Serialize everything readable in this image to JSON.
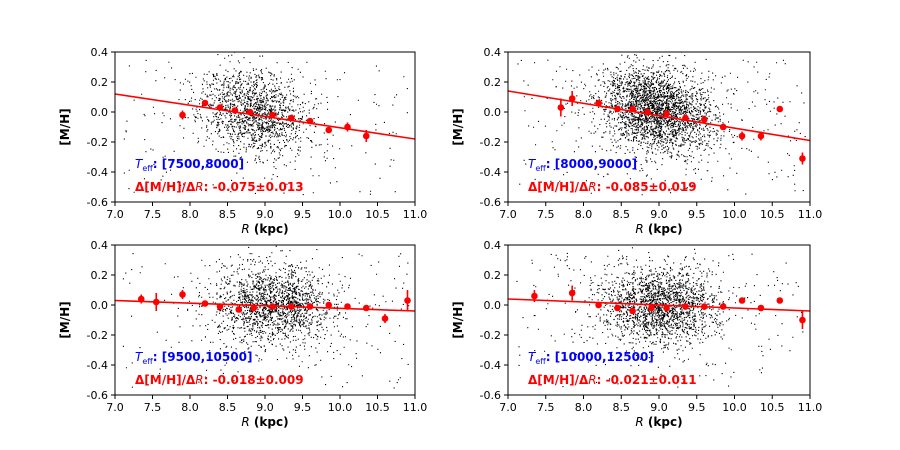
{
  "chart_data": [
    {
      "type": "scatter",
      "panel": "top-left",
      "xlabel_symbol": "R",
      "xlabel_unit": " (kpc)",
      "ylabel": "[M/H]",
      "xlim": [
        7.0,
        11.0
      ],
      "ylim": [
        -0.6,
        0.4
      ],
      "xticks": [
        "7.0",
        "7.5",
        "8.0",
        "8.5",
        "9.0",
        "9.5",
        "10.0",
        "10.5",
        "11.0"
      ],
      "yticks": [
        "-0.6",
        "-0.4",
        "-0.2",
        "0.0",
        "0.2",
        "0.4"
      ],
      "teff_label": "T",
      "teff_sub": "eff",
      "teff_range": ": [7500,8000]",
      "grad_prefix": "Δ[M/H]/Δ",
      "grad_sym": "R",
      "grad_value": ": -0.075±0.013",
      "fit_line": {
        "x": [
          7.0,
          11.0
        ],
        "y": [
          0.12,
          -0.18
        ]
      },
      "binned": [
        {
          "x": 7.9,
          "y": -0.02,
          "err": 0.03
        },
        {
          "x": 8.2,
          "y": 0.06,
          "err": 0.02
        },
        {
          "x": 8.4,
          "y": 0.03,
          "err": 0.01
        },
        {
          "x": 8.6,
          "y": 0.01,
          "err": 0.01
        },
        {
          "x": 8.8,
          "y": 0.0,
          "err": 0.01
        },
        {
          "x": 9.1,
          "y": -0.02,
          "err": 0.01
        },
        {
          "x": 9.35,
          "y": -0.04,
          "err": 0.01
        },
        {
          "x": 9.6,
          "y": -0.06,
          "err": 0.01
        },
        {
          "x": 9.85,
          "y": -0.12,
          "err": 0.02
        },
        {
          "x": 10.1,
          "y": -0.1,
          "err": 0.03
        },
        {
          "x": 10.35,
          "y": -0.16,
          "err": 0.04
        }
      ],
      "cloud": {
        "n": 1500,
        "cx": 8.85,
        "sx": 0.35,
        "cy": 0.0,
        "sy": 0.14,
        "bg": 180,
        "seed": 11,
        "slope": -0.075
      }
    },
    {
      "type": "scatter",
      "panel": "top-right",
      "xlabel_symbol": "R",
      "xlabel_unit": " (kpc)",
      "ylabel": "[M/H]",
      "xlim": [
        7.0,
        11.0
      ],
      "ylim": [
        -0.6,
        0.4
      ],
      "xticks": [
        "7.0",
        "7.5",
        "8.0",
        "8.5",
        "9.0",
        "9.5",
        "10.0",
        "10.5",
        "11.0"
      ],
      "yticks": [
        "-0.6",
        "-0.4",
        "-0.2",
        "0.0",
        "0.2",
        "0.4"
      ],
      "teff_label": "T",
      "teff_sub": "eff",
      "teff_range": ": [8000,9000]",
      "grad_prefix": "Δ[M/H]/Δ",
      "grad_sym": "R",
      "grad_value": ": -0.085±0.019",
      "fit_line": {
        "x": [
          7.0,
          11.0
        ],
        "y": [
          0.14,
          -0.19
        ]
      },
      "binned": [
        {
          "x": 7.7,
          "y": 0.03,
          "err": 0.06
        },
        {
          "x": 7.85,
          "y": 0.09,
          "err": 0.05
        },
        {
          "x": 8.2,
          "y": 0.06,
          "err": 0.02
        },
        {
          "x": 8.45,
          "y": 0.02,
          "err": 0.01
        },
        {
          "x": 8.65,
          "y": 0.02,
          "err": 0.01
        },
        {
          "x": 8.85,
          "y": 0.0,
          "err": 0.01
        },
        {
          "x": 9.1,
          "y": -0.01,
          "err": 0.01
        },
        {
          "x": 9.35,
          "y": -0.04,
          "err": 0.01
        },
        {
          "x": 9.6,
          "y": -0.05,
          "err": 0.01
        },
        {
          "x": 9.85,
          "y": -0.1,
          "err": 0.02
        },
        {
          "x": 10.1,
          "y": -0.16,
          "err": 0.03
        },
        {
          "x": 10.35,
          "y": -0.16,
          "err": 0.03
        },
        {
          "x": 10.6,
          "y": 0.02,
          "err": 0.01
        },
        {
          "x": 10.9,
          "y": -0.31,
          "err": 0.04
        }
      ],
      "cloud": {
        "n": 2600,
        "cx": 8.95,
        "sx": 0.38,
        "cy": 0.02,
        "sy": 0.14,
        "bg": 260,
        "seed": 29,
        "slope": -0.085
      }
    },
    {
      "type": "scatter",
      "panel": "bottom-left",
      "xlabel_symbol": "R",
      "xlabel_unit": " (kpc)",
      "ylabel": "[M/H]",
      "xlim": [
        7.0,
        11.0
      ],
      "ylim": [
        -0.6,
        0.4
      ],
      "xticks": [
        "7.0",
        "7.5",
        "8.0",
        "8.5",
        "9.0",
        "9.5",
        "10.0",
        "10.5",
        "11.0"
      ],
      "yticks": [
        "-0.6",
        "-0.4",
        "-0.2",
        "0.0",
        "0.2",
        "0.4"
      ],
      "teff_label": "T",
      "teff_sub": "eff",
      "teff_range": ": [9500,10500]",
      "grad_prefix": "Δ[M/H]/Δ",
      "grad_sym": "R",
      "grad_value": ": -0.018±0.009",
      "fit_line": {
        "x": [
          7.0,
          11.0
        ],
        "y": [
          0.03,
          -0.04
        ]
      },
      "binned": [
        {
          "x": 7.35,
          "y": 0.04,
          "err": 0.03
        },
        {
          "x": 7.55,
          "y": 0.02,
          "err": 0.06
        },
        {
          "x": 7.9,
          "y": 0.07,
          "err": 0.03
        },
        {
          "x": 8.2,
          "y": 0.01,
          "err": 0.02
        },
        {
          "x": 8.4,
          "y": -0.01,
          "err": 0.01
        },
        {
          "x": 8.65,
          "y": -0.03,
          "err": 0.01
        },
        {
          "x": 8.85,
          "y": -0.02,
          "err": 0.01
        },
        {
          "x": 9.1,
          "y": -0.01,
          "err": 0.01
        },
        {
          "x": 9.35,
          "y": -0.01,
          "err": 0.01
        },
        {
          "x": 9.6,
          "y": -0.01,
          "err": 0.01
        },
        {
          "x": 9.85,
          "y": -0.0,
          "err": 0.01
        },
        {
          "x": 10.1,
          "y": -0.01,
          "err": 0.02
        },
        {
          "x": 10.35,
          "y": -0.02,
          "err": 0.02
        },
        {
          "x": 10.6,
          "y": -0.09,
          "err": 0.03
        },
        {
          "x": 10.9,
          "y": 0.03,
          "err": 0.07
        }
      ],
      "cloud": {
        "n": 1700,
        "cx": 9.1,
        "sx": 0.4,
        "cy": 0.0,
        "sy": 0.13,
        "bg": 200,
        "seed": 47,
        "slope": -0.018
      }
    },
    {
      "type": "scatter",
      "panel": "bottom-right",
      "xlabel_symbol": "R",
      "xlabel_unit": " (kpc)",
      "ylabel": "[M/H]",
      "xlim": [
        7.0,
        11.0
      ],
      "ylim": [
        -0.6,
        0.4
      ],
      "xticks": [
        "7.0",
        "7.5",
        "8.0",
        "8.5",
        "9.0",
        "9.5",
        "10.0",
        "10.5",
        "11.0"
      ],
      "yticks": [
        "-0.6",
        "-0.4",
        "-0.2",
        "0.0",
        "0.2",
        "0.4"
      ],
      "teff_label": "T",
      "teff_sub": "eff",
      "teff_range": ": [10000,12500]",
      "grad_prefix": "Δ[M/H]/Δ",
      "grad_sym": "R",
      "grad_value": ": -0.021±0.011",
      "fit_line": {
        "x": [
          7.0,
          11.0
        ],
        "y": [
          0.04,
          -0.04
        ]
      },
      "binned": [
        {
          "x": 7.35,
          "y": 0.06,
          "err": 0.04
        },
        {
          "x": 7.85,
          "y": 0.08,
          "err": 0.05
        },
        {
          "x": 8.2,
          "y": 0.0,
          "err": 0.02
        },
        {
          "x": 8.45,
          "y": -0.02,
          "err": 0.01
        },
        {
          "x": 8.65,
          "y": -0.04,
          "err": 0.01
        },
        {
          "x": 8.9,
          "y": -0.02,
          "err": 0.01
        },
        {
          "x": 9.1,
          "y": -0.02,
          "err": 0.01
        },
        {
          "x": 9.35,
          "y": -0.01,
          "err": 0.01
        },
        {
          "x": 9.6,
          "y": -0.01,
          "err": 0.01
        },
        {
          "x": 9.85,
          "y": -0.01,
          "err": 0.01
        },
        {
          "x": 10.1,
          "y": 0.03,
          "err": 0.02
        },
        {
          "x": 10.35,
          "y": -0.02,
          "err": 0.02
        },
        {
          "x": 10.6,
          "y": 0.03,
          "err": 0.02
        },
        {
          "x": 10.9,
          "y": -0.1,
          "err": 0.06
        }
      ],
      "cloud": {
        "n": 1900,
        "cx": 9.0,
        "sx": 0.4,
        "cy": 0.0,
        "sy": 0.13,
        "bg": 220,
        "seed": 83,
        "slope": -0.021
      }
    }
  ],
  "colors": {
    "fit": "#ff0000",
    "binned": "#ff0000",
    "scatter": "#000000",
    "teff_text": "#0000ff",
    "grad_text": "#ff0000"
  }
}
